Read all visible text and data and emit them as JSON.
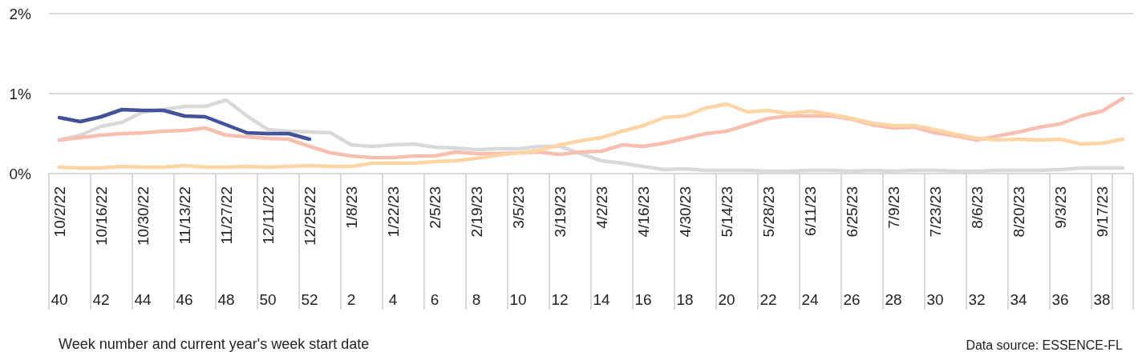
{
  "chart_data": {
    "type": "line",
    "annotations": [
      "Week number and current year's week start date",
      "Data source: ESSENCE-FL"
    ],
    "categories": [
      "10/2/22\n40",
      null,
      "10/16/22\n42",
      null,
      "10/30/22\n44",
      null,
      "11/13/22\n46",
      null,
      "11/27/22\n48",
      null,
      "12/11/22\n50",
      null,
      "12/25/22\n52",
      null,
      "1/8/23\n2",
      null,
      "1/22/23\n4",
      null,
      "2/5/23\n6",
      null,
      "2/19/23\n8",
      null,
      "3/5/23\n10",
      null,
      "3/19/23\n12",
      null,
      "4/2/23\n14",
      null,
      "4/16/23\n16",
      null,
      "4/30/23\n18",
      null,
      "5/14/23\n20",
      null,
      "5/28/23\n22",
      null,
      "6/11/23\n24",
      null,
      "6/25/23\n26",
      null,
      "7/9/23\n28",
      null,
      "7/23/23\n30",
      null,
      "8/6/23\n32",
      null,
      "8/20/23\n34",
      null,
      "9/3/23\n36",
      null,
      "9/17/23\n38",
      null
    ],
    "series": [
      {
        "color": "#d9d9d9",
        "values": [
          0.42,
          0.48,
          0.59,
          0.64,
          0.77,
          0.8,
          0.84,
          0.84,
          0.92,
          0.72,
          0.55,
          0.53,
          0.52,
          0.51,
          0.36,
          0.34,
          0.36,
          0.37,
          0.33,
          0.32,
          0.3,
          0.31,
          0.31,
          0.34,
          0.34,
          0.25,
          0.16,
          0.13,
          0.09,
          0.05,
          0.06,
          0.04,
          0.04,
          0.04,
          0.03,
          0.03,
          0.04,
          0.04,
          0.03,
          0.04,
          0.03,
          0.04,
          0.04,
          0.03,
          0.03,
          0.04,
          0.04,
          0.04,
          0.05,
          0.07,
          0.07,
          0.07
        ]
      },
      {
        "color": "#f8bfb0",
        "values": [
          0.42,
          0.45,
          0.48,
          0.5,
          0.51,
          0.53,
          0.54,
          0.57,
          0.48,
          0.46,
          0.44,
          0.43,
          0.34,
          0.26,
          0.22,
          0.2,
          0.2,
          0.22,
          0.22,
          0.27,
          0.25,
          0.25,
          0.26,
          0.27,
          0.24,
          0.27,
          0.28,
          0.36,
          0.34,
          0.38,
          0.44,
          0.5,
          0.53,
          0.61,
          0.69,
          0.72,
          0.72,
          0.72,
          0.68,
          0.61,
          0.57,
          0.58,
          0.51,
          0.47,
          0.42,
          0.47,
          0.52,
          0.58,
          0.62,
          0.72,
          0.78,
          0.94
        ]
      },
      {
        "color": "#fdd5a5",
        "values": [
          0.08,
          0.07,
          0.07,
          0.09,
          0.08,
          0.08,
          0.1,
          0.08,
          0.08,
          0.09,
          0.08,
          0.09,
          0.1,
          0.09,
          0.09,
          0.13,
          0.13,
          0.13,
          0.15,
          0.16,
          0.19,
          0.23,
          0.26,
          0.29,
          0.36,
          0.41,
          0.45,
          0.53,
          0.6,
          0.7,
          0.72,
          0.82,
          0.87,
          0.77,
          0.79,
          0.75,
          0.78,
          0.74,
          0.69,
          0.63,
          0.6,
          0.6,
          0.55,
          0.49,
          0.44,
          0.42,
          0.43,
          0.42,
          0.43,
          0.37,
          0.38,
          0.43
        ]
      },
      {
        "color": "#44529a",
        "values": [
          0.7,
          0.65,
          0.71,
          0.8,
          0.79,
          0.79,
          0.72,
          0.71,
          0.61,
          0.51,
          0.5,
          0.5,
          0.43,
          null,
          null,
          null,
          null,
          null,
          null,
          null,
          null,
          null,
          null,
          null,
          null,
          null,
          null,
          null,
          null,
          null,
          null,
          null,
          null,
          null,
          null,
          null,
          null,
          null,
          null,
          null,
          null,
          null,
          null,
          null,
          null,
          null,
          null,
          null,
          null,
          null,
          null,
          null
        ]
      }
    ],
    "ylim": [
      0,
      2
    ],
    "yticks": [
      {
        "value": 0,
        "label": "0%"
      },
      {
        "value": 1,
        "label": "1%"
      },
      {
        "value": 2,
        "label": "2%"
      }
    ],
    "grid": "y",
    "marker": "none"
  }
}
